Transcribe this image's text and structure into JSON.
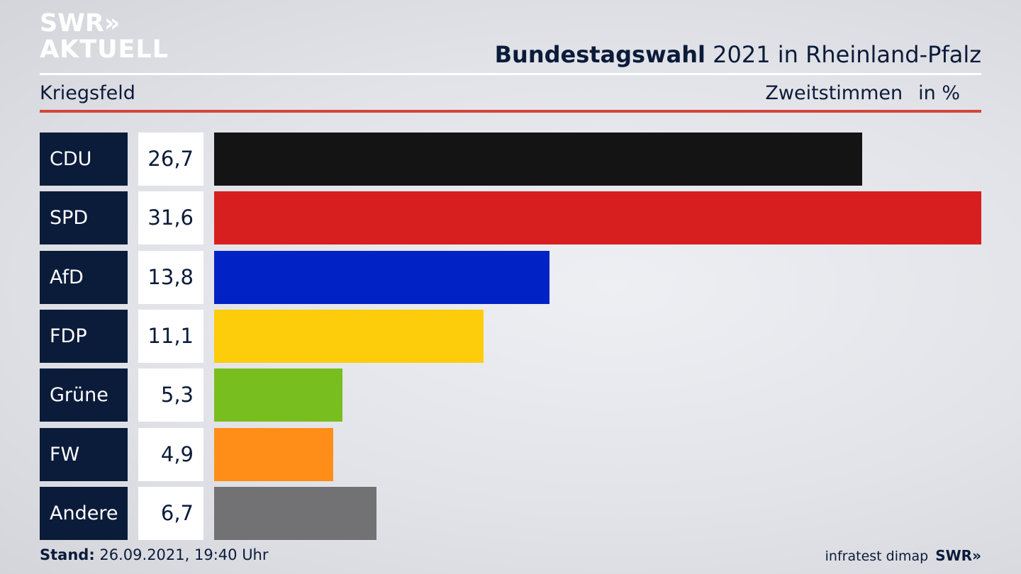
{
  "header": {
    "logo_line1": "SWR",
    "logo_chevrons": "»",
    "logo_line2": "AKTUELL",
    "title_bold": "Bundestagswahl",
    "title_rest": "2021 in Rheinland-Pfalz",
    "subtitle": "Kriegsfeld",
    "measure": "Zweitstimmen",
    "unit": "in %"
  },
  "chart_data": {
    "type": "bar",
    "orientation": "horizontal",
    "categories": [
      "CDU",
      "SPD",
      "AfD",
      "FDP",
      "Grüne",
      "FW",
      "Andere"
    ],
    "values": [
      26.7,
      31.6,
      13.8,
      11.1,
      5.3,
      4.9,
      6.7
    ],
    "value_labels": [
      "26,7",
      "31,6",
      "13,8",
      "11,1",
      "5,3",
      "4,9",
      "6,7"
    ],
    "colors": [
      "#141414",
      "#d81f20",
      "#0122c4",
      "#fdcc0a",
      "#79be1f",
      "#fe8e17",
      "#727274"
    ],
    "xlim": [
      0,
      31.6
    ],
    "grid": false,
    "legend": "none"
  },
  "footer": {
    "stand_label": "Stand:",
    "stand_value": "26.09.2021, 19:40 Uhr",
    "source": "infratest dimap",
    "brand": "SWR»"
  }
}
